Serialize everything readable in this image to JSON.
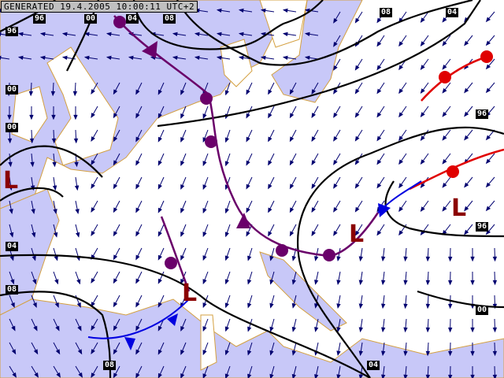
{
  "banner": "GENERATED 19.4.2005 10:00:11 UTC+2",
  "colors": {
    "sea": "#c8c8f8",
    "land": "#ffffff",
    "coast": "#d4a040",
    "isobar": "#000000",
    "occluded": "#6a006a",
    "warm": "#e00000",
    "cold": "#0000e0",
    "wind": "#000070",
    "low": "#8b0000"
  },
  "isobar_labels": [
    "96",
    "00",
    "04",
    "08",
    "08",
    "04",
    "96",
    "00",
    "00",
    "04",
    "08",
    "96",
    "96",
    "00",
    "08",
    "04"
  ],
  "pressure_systems": [
    "L",
    "L",
    "L",
    "L"
  ],
  "icons": {
    "wind": "wind-barb-arrow",
    "front-occluded": "occluded-front",
    "front-warm": "warm-front",
    "front-cold": "cold-front"
  }
}
